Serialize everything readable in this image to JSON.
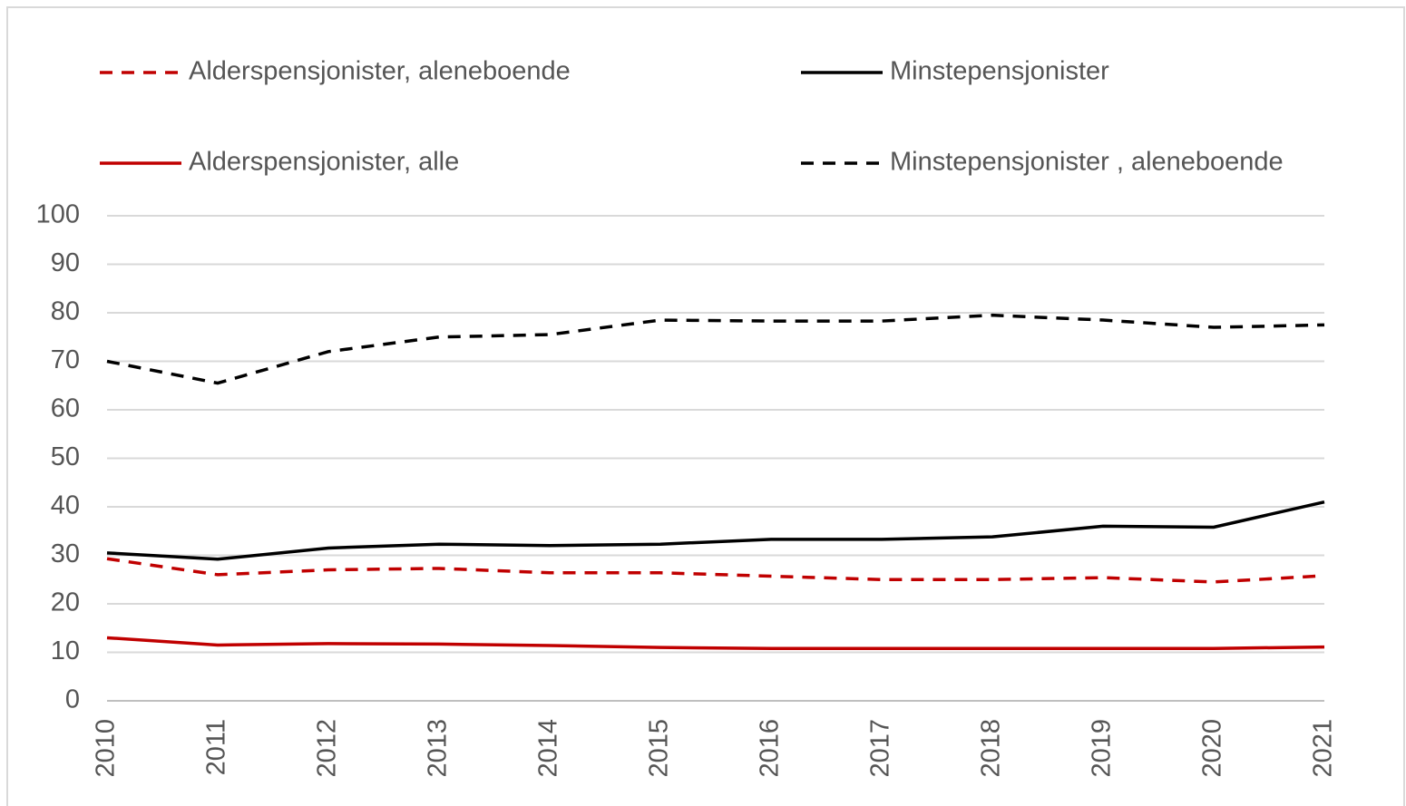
{
  "chart_data": {
    "type": "line",
    "x": [
      2010,
      2011,
      2012,
      2013,
      2014,
      2015,
      2016,
      2017,
      2018,
      2019,
      2020,
      2021
    ],
    "xlim": [
      2010,
      2021
    ],
    "ylim": [
      0,
      100
    ],
    "yticks": [
      0,
      10,
      20,
      30,
      40,
      50,
      60,
      70,
      80,
      90,
      100
    ],
    "grid": true,
    "legend": "top",
    "series": [
      {
        "name": "Alderspensjonister, aleneboende",
        "color": "#c00000",
        "dashed": true,
        "values": [
          29.3,
          26,
          27,
          27.3,
          26.4,
          26.4,
          25.7,
          25,
          25,
          25.4,
          24.5,
          25.8
        ]
      },
      {
        "name": "Minstepensjonister",
        "color": "#000000",
        "dashed": false,
        "values": [
          30.5,
          29.2,
          31.5,
          32.3,
          32,
          32.3,
          33.3,
          33.3,
          33.8,
          36,
          35.8,
          41
        ]
      },
      {
        "name": "Alderspensjonister, alle",
        "color": "#c00000",
        "dashed": false,
        "values": [
          13,
          11.5,
          11.8,
          11.7,
          11.4,
          11,
          10.8,
          10.8,
          10.8,
          10.8,
          10.8,
          11.1
        ]
      },
      {
        "name": "Minstepensjonister , aleneboende",
        "color": "#000000",
        "dashed": true,
        "values": [
          70,
          65.5,
          72,
          75,
          75.5,
          78.5,
          78.3,
          78.3,
          79.5,
          78.5,
          77,
          77.5
        ]
      }
    ]
  }
}
